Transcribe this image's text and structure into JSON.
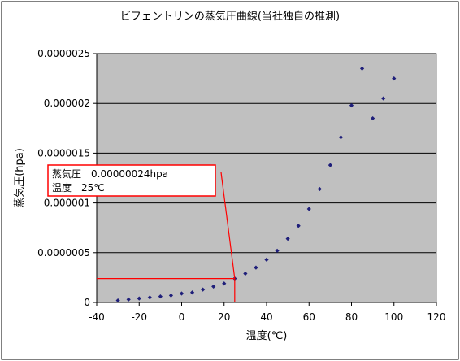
{
  "chart_data": {
    "type": "scatter",
    "title": "ビフェントリンの蒸気圧曲線(当社独自の推測)",
    "xlabel": "温度(℃)",
    "ylabel": "蒸気圧(hpa)",
    "xlim": [
      -40,
      120
    ],
    "ylim": [
      0,
      2.5e-06
    ],
    "x_ticks": [
      "-40",
      "-20",
      "0",
      "20",
      "40",
      "60",
      "80",
      "100",
      "120"
    ],
    "y_ticks": [
      "0",
      "0.0000005",
      "0.000001",
      "0.0000015",
      "0.000002",
      "0.0000025"
    ],
    "grid": true,
    "legend": "none",
    "series": [
      {
        "marker": "diamond",
        "color": "#1f1f7a",
        "x": [
          -30,
          -25,
          -20,
          -15,
          -10,
          -5,
          0,
          5,
          10,
          15,
          20,
          25,
          30,
          35,
          40,
          45,
          50,
          55,
          60,
          65,
          70,
          75,
          80,
          85,
          90,
          95,
          100
        ],
        "y": [
          2e-08,
          3e-08,
          4e-08,
          5e-08,
          6e-08,
          7e-08,
          9e-08,
          1e-07,
          1.3e-07,
          1.6e-07,
          1.9e-07,
          2.4e-07,
          2.9e-07,
          3.5e-07,
          4.3e-07,
          5.2e-07,
          6.4e-07,
          7.7e-07,
          9.4e-07,
          1.14e-06,
          1.38e-06,
          1.66e-06,
          1.98e-06,
          2.35e-06,
          1.85e-06,
          2.05e-06,
          2.25e-06
        ]
      }
    ],
    "annotation": {
      "line1": "蒸気圧　0.00000024hpa",
      "line2": "温度　25℃",
      "x": 25,
      "y": 2.4e-07,
      "color": "#ff0000"
    }
  }
}
